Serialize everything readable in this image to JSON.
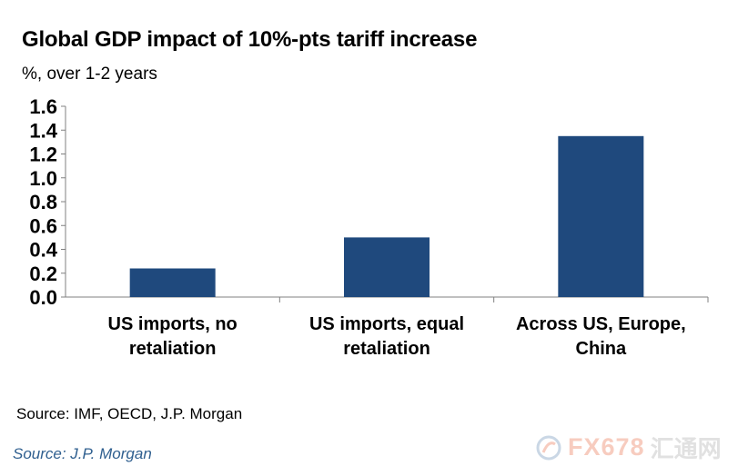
{
  "chart_data": {
    "type": "bar",
    "title": "Global GDP impact of 10%-pts tariff increase",
    "subtitle": "%, over 1-2 years",
    "categories": [
      [
        "US imports, no",
        "retaliation"
      ],
      [
        "US imports, equal",
        "retaliation"
      ],
      [
        "Across US, Europe,",
        "China"
      ]
    ],
    "values": [
      0.24,
      0.5,
      1.35
    ],
    "ylim": [
      0,
      1.6
    ],
    "yticks": [
      "0.0",
      "0.2",
      "0.4",
      "0.6",
      "0.8",
      "1.0",
      "1.2",
      "1.4",
      "1.6"
    ],
    "bar_color": "#1f497d",
    "legend": "none"
  },
  "source_line": "Source: IMF, OECD, J.P. Morgan",
  "source_credit": "Source: J.P. Morgan",
  "watermark": {
    "brand": "FX678",
    "cn": "汇通网"
  }
}
